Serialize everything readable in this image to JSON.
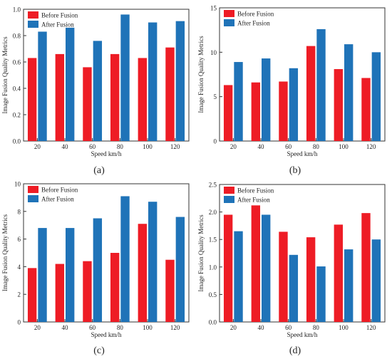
{
  "colors": {
    "before": "#ee1c25",
    "after": "#1f73b8",
    "axis": "#333333"
  },
  "chart_data": [
    {
      "type": "bar",
      "panel_label": "(a)",
      "categories": [
        "20",
        "40",
        "60",
        "80",
        "100",
        "120"
      ],
      "xlabel": "Speed km/h",
      "ylabel": "Image Fusion Quality Metrics",
      "ylim": [
        0.0,
        1.0
      ],
      "yticks": [
        "0.0",
        "0.2",
        "0.4",
        "0.6",
        "0.8",
        "1.0"
      ],
      "grid": false,
      "legend_position": "top-left",
      "series": [
        {
          "name": "Before Fusion",
          "values": [
            0.63,
            0.66,
            0.56,
            0.66,
            0.63,
            0.71
          ]
        },
        {
          "name": "After Fusion",
          "values": [
            0.83,
            0.86,
            0.76,
            0.96,
            0.9,
            0.91
          ]
        }
      ]
    },
    {
      "type": "bar",
      "panel_label": "(b)",
      "categories": [
        "20",
        "40",
        "60",
        "80",
        "100",
        "120"
      ],
      "xlabel": "Speed km/h",
      "ylabel": "Image Fusion Quality Metrics",
      "ylim": [
        0,
        15
      ],
      "yticks": [
        "0",
        "5",
        "10",
        "15"
      ],
      "grid": false,
      "legend_position": "top-left",
      "series": [
        {
          "name": "Before Fusion",
          "values": [
            6.3,
            6.6,
            6.7,
            10.7,
            8.1,
            7.1
          ]
        },
        {
          "name": "After Fusion",
          "values": [
            8.9,
            9.3,
            8.2,
            12.6,
            10.9,
            10.0
          ]
        }
      ]
    },
    {
      "type": "bar",
      "panel_label": "(c)",
      "categories": [
        "20",
        "40",
        "60",
        "80",
        "100",
        "120"
      ],
      "xlabel": "Speed km/h",
      "ylabel": "Image Fusion Quality Metrics",
      "ylim": [
        0,
        10
      ],
      "yticks": [
        "0",
        "2",
        "4",
        "6",
        "8",
        "10"
      ],
      "grid": false,
      "legend_position": "top-left",
      "series": [
        {
          "name": "Before Fusion",
          "values": [
            3.9,
            4.2,
            4.4,
            5.0,
            7.1,
            4.5
          ]
        },
        {
          "name": "After Fusion",
          "values": [
            6.8,
            6.8,
            7.5,
            9.1,
            8.7,
            7.6
          ]
        }
      ]
    },
    {
      "type": "bar",
      "panel_label": "(d)",
      "categories": [
        "20",
        "40",
        "60",
        "80",
        "100",
        "120"
      ],
      "xlabel": "Speed km/h",
      "ylabel": "Image Fusion Quality Metrics",
      "ylim": [
        0.0,
        2.5
      ],
      "yticks": [
        "0.0",
        "0.5",
        "1.0",
        "1.5",
        "2.0",
        "2.5"
      ],
      "grid": false,
      "legend_position": "top-left",
      "series": [
        {
          "name": "Before Fusion",
          "values": [
            1.95,
            2.12,
            1.64,
            1.54,
            1.77,
            1.98
          ]
        },
        {
          "name": "After Fusion",
          "values": [
            1.65,
            1.95,
            1.22,
            1.01,
            1.32,
            1.5
          ]
        }
      ]
    }
  ]
}
